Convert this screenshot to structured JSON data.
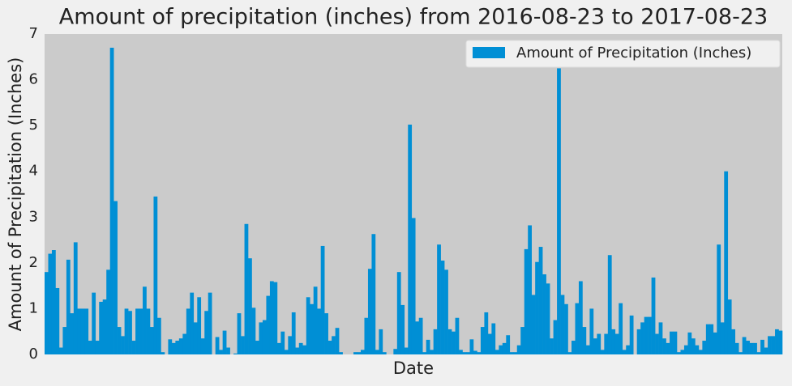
{
  "chart_data": {
    "type": "bar",
    "title": "Amount of precipitation (inches) from 2016-08-23 to 2017-08-23",
    "x_label": "Date",
    "y_label": "Amount of Precipitation (Inches)",
    "series": [
      {
        "name": "Amount of Precipitation (Inches)",
        "color": "#008fd5",
        "values": [
          1.8,
          2.2,
          2.28,
          1.45,
          0.15,
          0.6,
          2.07,
          0.9,
          2.45,
          1.0,
          1.0,
          1.0,
          0.3,
          1.35,
          0.3,
          1.15,
          1.2,
          1.85,
          6.7,
          3.35,
          0.6,
          0.4,
          1.0,
          0.95,
          0.3,
          1.0,
          1.0,
          1.48,
          1.0,
          0.6,
          3.45,
          0.8,
          0.05,
          0,
          0.33,
          0.25,
          0.3,
          0.35,
          0.45,
          1.0,
          1.35,
          0.7,
          1.25,
          0.35,
          0.95,
          1.35,
          0,
          0.38,
          0.1,
          0.52,
          0.15,
          0,
          0.02,
          0.9,
          0.4,
          2.85,
          2.1,
          1.02,
          0.3,
          0.7,
          0.75,
          1.28,
          1.6,
          1.58,
          0.25,
          0.5,
          0.1,
          0.4,
          0.92,
          0.15,
          0.25,
          0.2,
          1.25,
          1.1,
          1.48,
          1.0,
          2.37,
          0.9,
          0.3,
          0.4,
          0.58,
          0.05,
          0,
          0,
          0,
          0.05,
          0.05,
          0.1,
          0.8,
          1.87,
          2.63,
          0.1,
          0.55,
          0.05,
          0,
          0,
          0.12,
          1.8,
          1.08,
          0.15,
          5.02,
          2.98,
          0.72,
          0.8,
          0.05,
          0.32,
          0.1,
          0.55,
          2.4,
          2.05,
          1.85,
          0.55,
          0.5,
          0.8,
          0.1,
          0.05,
          0.05,
          0.33,
          0.08,
          0.05,
          0.6,
          0.92,
          0.45,
          0.68,
          0.1,
          0.2,
          0.25,
          0.42,
          0.05,
          0.05,
          0.2,
          0.6,
          2.3,
          2.82,
          1.3,
          2.02,
          2.35,
          1.75,
          1.55,
          0.35,
          0.75,
          6.25,
          1.3,
          1.1,
          0.05,
          0.3,
          1.12,
          1.6,
          0.6,
          0.2,
          1.0,
          0.35,
          0.45,
          0.1,
          0.45,
          2.17,
          0.55,
          0.45,
          1.12,
          0.1,
          0.2,
          0.85,
          0,
          0.55,
          0.7,
          0.82,
          0.82,
          1.68,
          0.45,
          0.7,
          0.35,
          0.25,
          0.5,
          0.5,
          0.05,
          0.1,
          0.2,
          0.48,
          0.35,
          0.2,
          0.1,
          0.3,
          0.66,
          0.66,
          0.48,
          2.4,
          0.7,
          4.0,
          1.2,
          0.55,
          0.25,
          0.05,
          0.38,
          0.3,
          0.25,
          0.25,
          0.05,
          0.32,
          0.15,
          0.4,
          0.4,
          0.55,
          0.52
        ]
      }
    ],
    "ylim": [
      0,
      7
    ],
    "yticks": [
      0,
      1,
      2,
      3,
      4,
      5,
      6,
      7
    ],
    "grid": false,
    "legend": "upper right"
  }
}
